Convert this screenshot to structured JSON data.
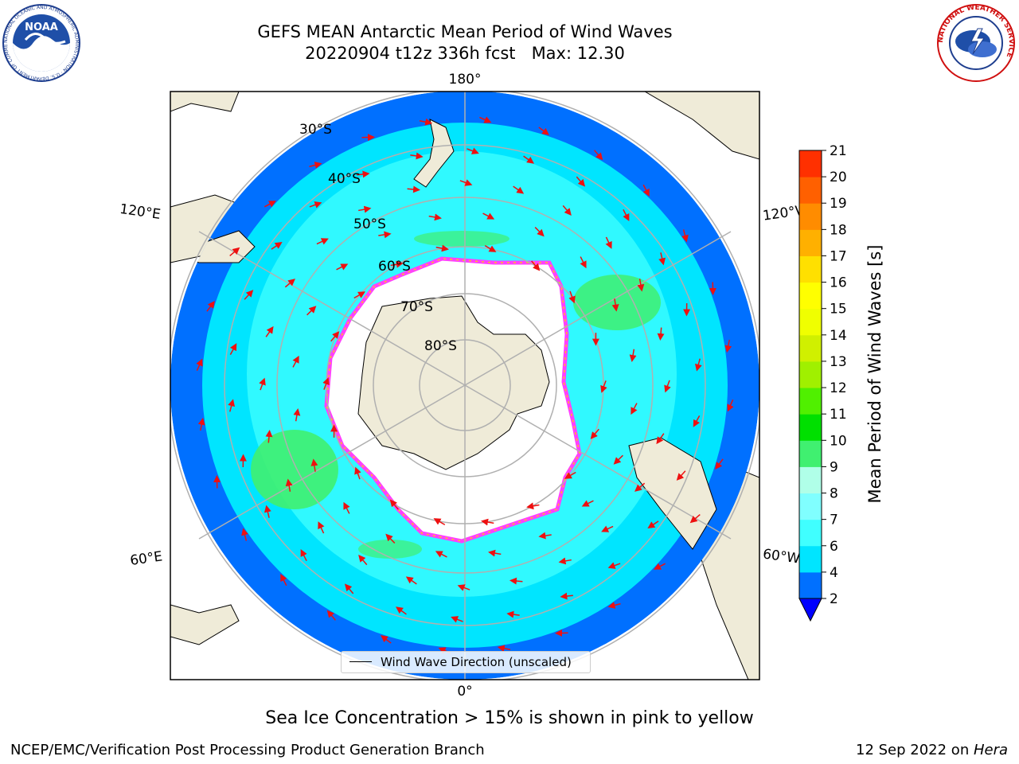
{
  "header": {
    "title_line1": "GEFS MEAN Antarctic Mean Period of Wind Waves",
    "title_line2": "20220904 t12z 336h fcst   Max: 12.30"
  },
  "map": {
    "projection": "south-polar-stereographic",
    "longitude_labels": {
      "top": "180°",
      "bottom": "0°",
      "left_upper": "120°E",
      "left_lower": "60°E",
      "right_upper": "120°W",
      "right_lower": "60°W"
    },
    "latitude_labels": [
      "30°S",
      "40°S",
      "50°S",
      "60°S",
      "70°S",
      "80°S"
    ],
    "legend_label": "Wind Wave Direction (unscaled)",
    "colors": {
      "land": "#efebd8",
      "ice_free_white": "#ffffff",
      "sea_ice_edge": "#ff40ff",
      "sea_ice_yellow": "#ffc020",
      "arrow": "#ff0000",
      "gridline": "#b0b0b0"
    }
  },
  "colorbar": {
    "label": "Mean Period of Wind Waves [s]",
    "ticks": [
      "2",
      "4",
      "6",
      "7",
      "8",
      "9",
      "10",
      "11",
      "12",
      "13",
      "14",
      "15",
      "16",
      "17",
      "18",
      "19",
      "20",
      "21"
    ],
    "colors": [
      "#0070ff",
      "#00e5ff",
      "#40ffff",
      "#80ffff",
      "#b0ffe8",
      "#40f070",
      "#00e000",
      "#50f000",
      "#a0f000",
      "#d0f000",
      "#f0ff00",
      "#ffff00",
      "#ffe000",
      "#ffb000",
      "#ff8c00",
      "#ff6000",
      "#ff3000",
      "#ff0000"
    ],
    "under_color": "#0000ff"
  },
  "footer": {
    "subtitle": "Sea Ice Concentration > 15% is shown in pink to yellow",
    "credit": "NCEP/EMC/Verification Post Processing Product Generation Branch",
    "date": "12 Sep 2022 on ",
    "host": "Hera"
  },
  "logos": {
    "noaa_text": "NOAA",
    "noaa_ring_text": "NATIONAL OCEANIC AND ATMOSPHERIC ADMINISTRATION · U.S. DEPARTMENT OF COMMERCE",
    "nws_ring_text": "NATIONAL WEATHER SERVICE"
  },
  "chart_data": {
    "type": "heatmap",
    "variable": "Mean Period of Wind Waves [s]",
    "max_value": 12.3,
    "colorbar_range": [
      2,
      21
    ],
    "latitude_circles": [
      "30°S",
      "40°S",
      "50°S",
      "60°S",
      "70°S",
      "80°S"
    ],
    "meridians": [
      "180°",
      "120°W",
      "60°W",
      "0°",
      "60°E",
      "120°E"
    ]
  }
}
